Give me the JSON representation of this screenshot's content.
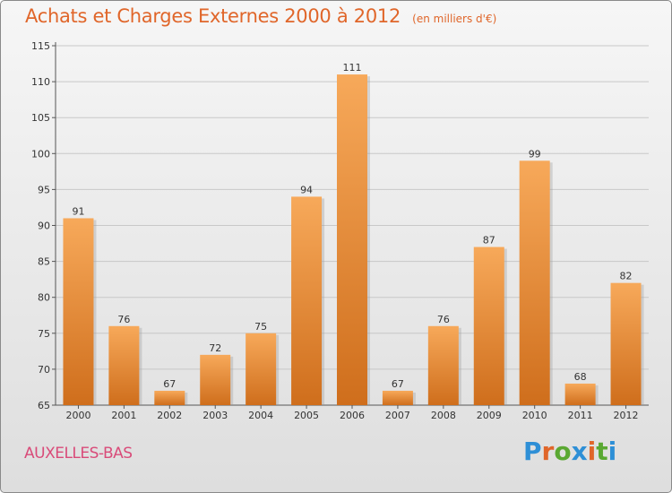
{
  "title": "Achats et Charges Externes 2000 à 2012",
  "subtitle": "(en milliers d'€)",
  "commune": "AUXELLES-BAS",
  "logo": {
    "letters": [
      "P",
      "r",
      "o",
      "x",
      "i",
      "t",
      "i"
    ],
    "colors": [
      "#2e8fd6",
      "#e0662a",
      "#5aa832",
      "#2e8fd6",
      "#e0662a",
      "#5aa832",
      "#2e8fd6"
    ]
  },
  "colors": {
    "bar_light": "#f7a95a",
    "bar_dark": "#cf6e1c",
    "title": "#e0662a",
    "commune": "#d94b79"
  },
  "chart_data": {
    "type": "bar",
    "categories": [
      "2000",
      "2001",
      "2002",
      "2003",
      "2004",
      "2005",
      "2006",
      "2007",
      "2008",
      "2009",
      "2010",
      "2011",
      "2012"
    ],
    "values": [
      91,
      76,
      67,
      72,
      75,
      94,
      111,
      67,
      76,
      87,
      99,
      68,
      82
    ],
    "data_labels": [
      "91",
      "76",
      "67",
      "72",
      "75",
      "94",
      "111",
      "67",
      "76",
      "87",
      "99",
      "68",
      "82"
    ],
    "yticks": [
      "65",
      "70",
      "75",
      "80",
      "85",
      "90",
      "95",
      "100",
      "105",
      "110",
      "115"
    ],
    "ylim": [
      65,
      115
    ],
    "grid": true
  }
}
